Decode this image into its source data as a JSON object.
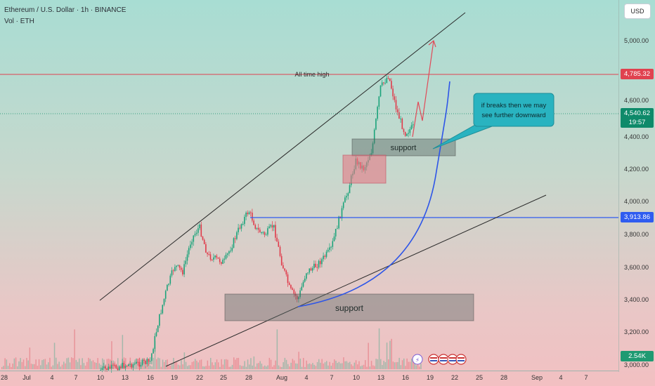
{
  "header": {
    "title": "Ethereum / U.S. Dollar · 1h · BINANCE",
    "vol": "Vol · ETH"
  },
  "price_axis": {
    "currency_button": "USD",
    "ticks": [
      "5,000.00",
      "4,600.00",
      "4,400.00",
      "4,200.00",
      "4,000.00",
      "3,800.00",
      "3,600.00",
      "3,400.00",
      "3,200.00",
      "3,000.00"
    ],
    "ath_badge": "4,785.32",
    "current_badge": "4,540.62",
    "countdown": "19:57",
    "level_badge": "3,913.86",
    "volume_badge": "2.54K"
  },
  "time_axis": [
    "28",
    "Jul",
    "4",
    "7",
    "10",
    "13",
    "16",
    "19",
    "22",
    "25",
    "28",
    "Aug",
    "4",
    "7",
    "10",
    "13",
    "16",
    "19",
    "22",
    "25",
    "28",
    "Sep",
    "4",
    "7"
  ],
  "annotations": {
    "ath_label": "All time high",
    "support_top": "support",
    "support_bottom": "support",
    "callout": "if breaks then we may see further downward",
    "callout_line1": "if breaks then we may",
    "callout_line2": "see further downward"
  },
  "colors": {
    "ath_line": "#e0424f",
    "level_line": "#2f5cf0",
    "current_price": "#0e8a6a",
    "curve": "#2d55e8",
    "callout_bg": "#29b3c0",
    "up_candle": "#1aa37a",
    "down_candle": "#e03a4a"
  },
  "chart_data": {
    "type": "candlestick",
    "timeframe": "1h",
    "symbol": "ETHUSD",
    "exchange": "BINANCE",
    "ylim": [
      3000,
      5150
    ],
    "levels": {
      "all_time_high": 4785.32,
      "current_price": 4540.62,
      "horizontal_level": 3913.86
    },
    "support_zones": [
      {
        "label": "support",
        "low": 4290,
        "high": 4370,
        "from": "Aug 12",
        "to": "Aug 21"
      },
      {
        "label": "support",
        "low": 3290,
        "high": 3440,
        "from": "Jul 26",
        "to": "Aug 24"
      }
    ],
    "price_path": [
      {
        "date": "Jul 10",
        "close": 2950
      },
      {
        "date": "Jul 13",
        "close": 2980
      },
      {
        "date": "Jul 16",
        "close": 3000
      },
      {
        "date": "Jul 17",
        "close": 3250
      },
      {
        "date": "Jul 18",
        "close": 3450
      },
      {
        "date": "Jul 19",
        "close": 3600
      },
      {
        "date": "Jul 20",
        "close": 3560
      },
      {
        "date": "Jul 21",
        "close": 3760
      },
      {
        "date": "Jul 22",
        "close": 3840
      },
      {
        "date": "Jul 23",
        "close": 3660
      },
      {
        "date": "Jul 25",
        "close": 3620
      },
      {
        "date": "Jul 26",
        "close": 3730
      },
      {
        "date": "Jul 27",
        "close": 3850
      },
      {
        "date": "Jul 28",
        "close": 3940
      },
      {
        "date": "Jul 29",
        "close": 3820
      },
      {
        "date": "Jul 30",
        "close": 3790
      },
      {
        "date": "Jul 31",
        "close": 3850
      },
      {
        "date": "Aug 1",
        "close": 3620
      },
      {
        "date": "Aug 2",
        "close": 3450
      },
      {
        "date": "Aug 3",
        "close": 3390
      },
      {
        "date": "Aug 4",
        "close": 3560
      },
      {
        "date": "Aug 5",
        "close": 3590
      },
      {
        "date": "Aug 6",
        "close": 3640
      },
      {
        "date": "Aug 7",
        "close": 3700
      },
      {
        "date": "Aug 8",
        "close": 3890
      },
      {
        "date": "Aug 9",
        "close": 4050
      },
      {
        "date": "Aug 10",
        "close": 4250
      },
      {
        "date": "Aug 11",
        "close": 4200
      },
      {
        "date": "Aug 12",
        "close": 4320
      },
      {
        "date": "Aug 13",
        "close": 4700
      },
      {
        "date": "Aug 14",
        "close": 4780
      },
      {
        "date": "Aug 15",
        "close": 4560
      },
      {
        "date": "Aug 16",
        "close": 4420
      },
      {
        "date": "Aug 17",
        "close": 4460
      }
    ]
  }
}
